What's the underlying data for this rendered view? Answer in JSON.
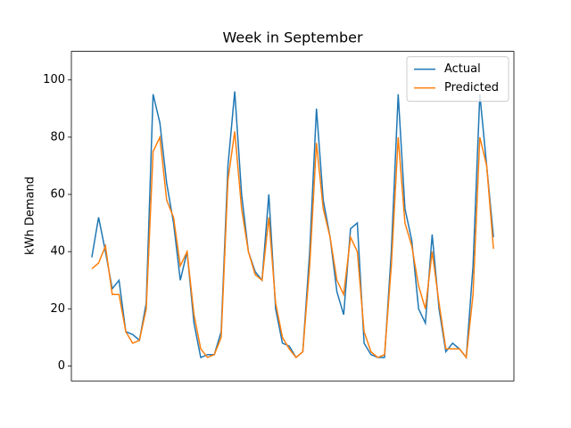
{
  "chart_data": {
    "type": "line",
    "title": "Week in September",
    "y_label": "kWh Demand",
    "x": [
      0,
      1,
      2,
      3,
      4,
      5,
      6,
      7,
      8,
      9,
      10,
      11,
      12,
      13,
      14,
      15,
      16,
      17,
      18,
      19,
      20,
      21,
      22,
      23,
      24,
      25,
      26,
      27,
      28,
      29,
      30,
      31,
      32,
      33,
      34,
      35,
      36,
      37,
      38,
      39,
      40,
      41,
      42,
      43,
      44,
      45,
      46,
      47,
      48,
      49,
      50,
      51,
      52,
      53,
      54,
      55,
      56,
      57,
      58,
      59
    ],
    "xlim": [
      -3,
      62
    ],
    "series": [
      {
        "name": "Actual",
        "color": "#1f77b4",
        "values": [
          38,
          52,
          40,
          27,
          30,
          12,
          11,
          9,
          22,
          95,
          85,
          64,
          50,
          30,
          40,
          15,
          3,
          4,
          4,
          12,
          70,
          96,
          60,
          40,
          33,
          30,
          60,
          20,
          8,
          7,
          3,
          5,
          40,
          90,
          58,
          45,
          26,
          18,
          48,
          50,
          8,
          4,
          3,
          3,
          40,
          95,
          55,
          44,
          20,
          15,
          46,
          20,
          5,
          8,
          6,
          3,
          35,
          95,
          70,
          45
        ]
      },
      {
        "name": "Predicted",
        "color": "#ff7f0e",
        "values": [
          34,
          36,
          42,
          25,
          25,
          12,
          8,
          9,
          20,
          75,
          80,
          58,
          52,
          35,
          40,
          18,
          6,
          3,
          4,
          10,
          65,
          82,
          55,
          40,
          32,
          30,
          52,
          22,
          10,
          6,
          3,
          5,
          35,
          78,
          55,
          45,
          30,
          25,
          45,
          40,
          12,
          5,
          3,
          4,
          35,
          80,
          50,
          42,
          28,
          20,
          40,
          22,
          6,
          6,
          6,
          3,
          25,
          80,
          70,
          41
        ]
      }
    ],
    "ylim": [
      -5.2,
      110
    ],
    "yticks": [
      0,
      20,
      40,
      60,
      80,
      100
    ],
    "grid": false,
    "legend": "upper right"
  }
}
